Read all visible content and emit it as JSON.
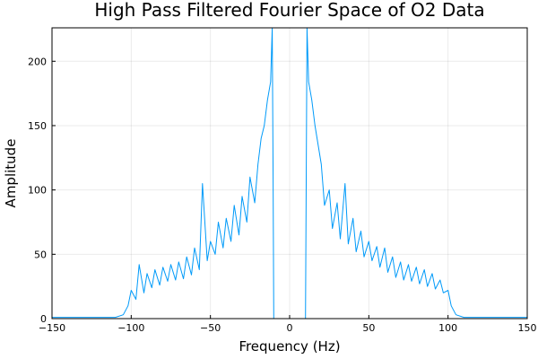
{
  "chart_data": {
    "type": "line",
    "title": "High Pass Filtered Fourier Space of O2 Data",
    "xlabel": "Frequency (Hz)",
    "ylabel": "Amplitude",
    "xlim": [
      -150,
      150
    ],
    "ylim": [
      0,
      226
    ],
    "xticks": [
      -150,
      -100,
      -50,
      0,
      50,
      100,
      150
    ],
    "yticks": [
      0,
      50,
      100,
      150,
      200
    ],
    "grid": true,
    "legend": "none",
    "line_color": "#009af9",
    "series": [
      {
        "x": [
          -150,
          -110,
          -105,
          -102,
          -100,
          -97,
          -95,
          -92,
          -90,
          -87,
          -85,
          -82,
          -80,
          -77,
          -75,
          -72,
          -70,
          -67,
          -65,
          -62,
          -60,
          -57,
          -55,
          -52,
          -50,
          -47,
          -45,
          -42,
          -40,
          -37,
          -35,
          -32,
          -30,
          -27,
          -25,
          -22,
          -20,
          -18,
          -16,
          -14,
          -12,
          -11,
          -10.5,
          -10,
          10,
          10.5,
          11,
          12,
          14,
          16,
          18,
          20,
          22,
          25,
          27,
          30,
          32,
          35,
          37,
          40,
          42,
          45,
          47,
          50,
          52,
          55,
          57,
          60,
          62,
          65,
          67,
          70,
          72,
          75,
          77,
          80,
          82,
          85,
          87,
          90,
          92,
          95,
          97,
          100,
          102,
          105,
          110,
          150
        ],
        "y": [
          1,
          1,
          3,
          10,
          22,
          15,
          42,
          20,
          35,
          24,
          38,
          26,
          40,
          29,
          42,
          30,
          44,
          31,
          48,
          34,
          55,
          38,
          105,
          45,
          60,
          50,
          75,
          55,
          78,
          60,
          88,
          65,
          95,
          75,
          110,
          90,
          120,
          140,
          150,
          170,
          184,
          230,
          120,
          0,
          0,
          120,
          230,
          184,
          170,
          150,
          135,
          120,
          88,
          100,
          70,
          90,
          62,
          105,
          58,
          78,
          52,
          68,
          48,
          60,
          45,
          56,
          40,
          55,
          36,
          48,
          32,
          44,
          30,
          42,
          29,
          40,
          27,
          38,
          25,
          35,
          23,
          30,
          20,
          22,
          10,
          3,
          1,
          1
        ]
      }
    ]
  }
}
